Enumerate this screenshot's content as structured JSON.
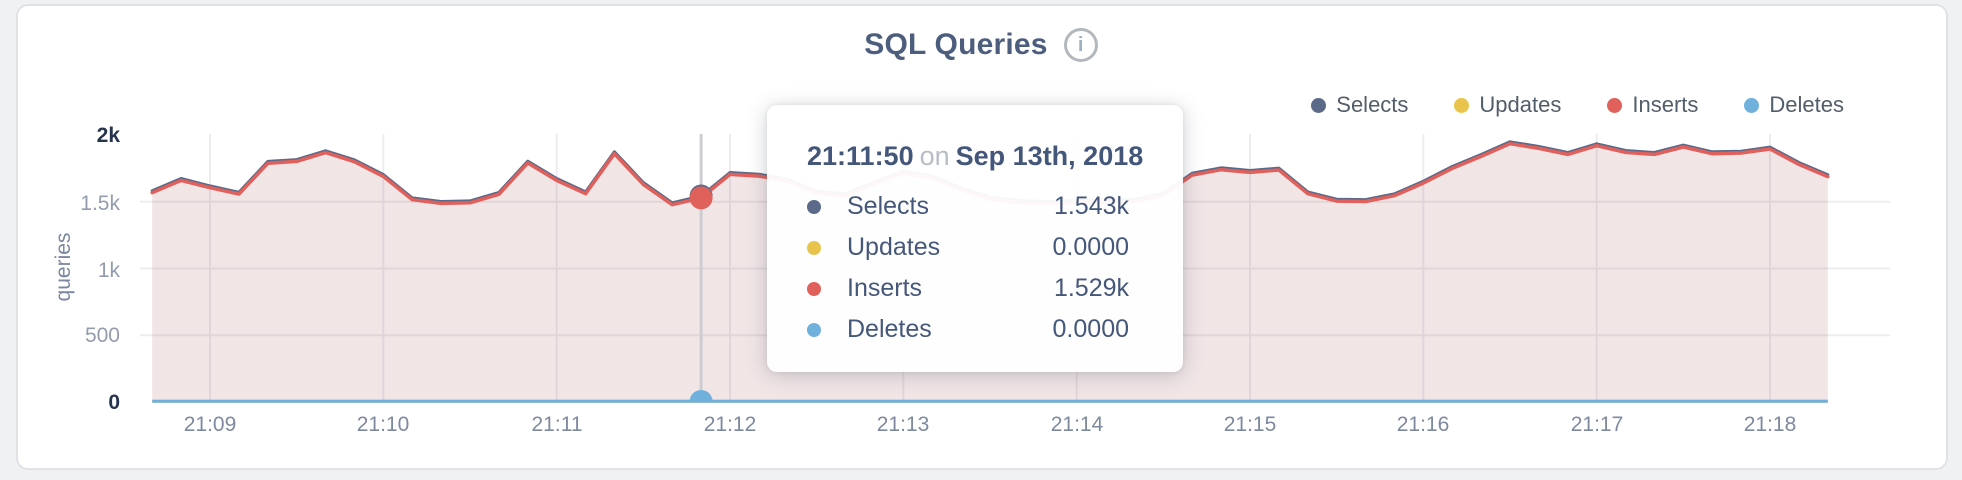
{
  "header": {
    "title": "SQL Queries",
    "info_glyph": "i"
  },
  "chart_data": {
    "type": "area",
    "title": "SQL Queries",
    "ylabel": "queries",
    "ylim": [
      0,
      2000
    ],
    "grid": true,
    "legend_position": "top-right",
    "x_date": "Sep 13th, 2018",
    "x_start": "21:08:40",
    "x_interval_seconds": 10,
    "x_offset_seconds": -20,
    "xticks": [
      "21:09",
      "21:10",
      "21:11",
      "21:12",
      "21:13",
      "21:14",
      "21:15",
      "21:16",
      "21:17",
      "21:18"
    ],
    "yticks": [
      {
        "label": "2k",
        "value": 2000
      },
      {
        "label": "1.5k",
        "value": 1500
      },
      {
        "label": "1k",
        "value": 1000
      },
      {
        "label": "500",
        "value": 500
      },
      {
        "label": "0",
        "value": 0
      }
    ],
    "series": [
      {
        "name": "Selects",
        "color": "#5a6a88",
        "values": [
          1582,
          1674,
          1619,
          1571,
          1802,
          1816,
          1882,
          1814,
          1704,
          1529,
          1502,
          1506,
          1570,
          1804,
          1674,
          1574,
          1874,
          1644,
          1492,
          1543,
          1719,
          1706,
          1669,
          1579,
          1559,
          1649,
          1729,
          1694,
          1604,
          1534,
          1509,
          1502,
          1509,
          1512,
          1516,
          1564,
          1714,
          1754,
          1734,
          1752,
          1574,
          1519,
          1516,
          1559,
          1654,
          1764,
          1854,
          1949,
          1914,
          1869,
          1934,
          1884,
          1869,
          1924,
          1874,
          1879,
          1909,
          1794,
          1702
        ]
      },
      {
        "name": "Updates",
        "color": "#e8c44c",
        "constant_value": 0
      },
      {
        "name": "Inserts",
        "color": "#e0605c",
        "values": [
          1568,
          1660,
          1605,
          1557,
          1788,
          1802,
          1868,
          1800,
          1690,
          1515,
          1488,
          1492,
          1556,
          1790,
          1660,
          1560,
          1860,
          1630,
          1478,
          1529,
          1705,
          1692,
          1655,
          1565,
          1545,
          1635,
          1715,
          1680,
          1590,
          1520,
          1495,
          1488,
          1495,
          1498,
          1502,
          1550,
          1700,
          1740,
          1720,
          1738,
          1560,
          1505,
          1502,
          1545,
          1640,
          1750,
          1840,
          1935,
          1900,
          1855,
          1920,
          1870,
          1855,
          1910,
          1860,
          1865,
          1895,
          1780,
          1688
        ]
      },
      {
        "name": "Deletes",
        "color": "#6fb0dc",
        "constant_value": 0
      }
    ],
    "hover": {
      "index": 19,
      "time": "21:11:50",
      "values": {
        "Selects": 1543,
        "Updates": 0,
        "Inserts": 1529,
        "Deletes": 0
      }
    }
  },
  "tooltip": {
    "time": "21:11:50",
    "on_word": "on",
    "date": "Sep 13th, 2018",
    "rows": [
      {
        "label": "Selects",
        "value": "1.543k"
      },
      {
        "label": "Updates",
        "value": "0.0000"
      },
      {
        "label": "Inserts",
        "value": "1.529k"
      },
      {
        "label": "Deletes",
        "value": "0.0000"
      }
    ]
  }
}
